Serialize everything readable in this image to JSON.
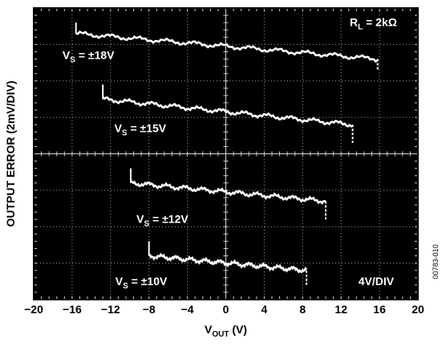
{
  "chart_data": {
    "type": "line",
    "title": "",
    "xlabel": "V",
    "xlabel_sub": "OUT",
    "xlabel_unit": " (V)",
    "ylabel": "OUTPUT ERROR (2mV/DIV)",
    "xlim": [
      -20,
      20
    ],
    "ylim": [
      -8,
      8
    ],
    "x_ticks": [
      "−20",
      "−16",
      "−12",
      "−8",
      "−4",
      "0",
      "4",
      "8",
      "12",
      "16",
      "20"
    ],
    "grid": true,
    "background": "#000000",
    "trace_color": "#ffffff",
    "annotations": {
      "load": {
        "main": "R",
        "sub": "L",
        "rest": " = 2kΩ"
      },
      "scale": "4V/DIV",
      "figure_code": "00783-010"
    },
    "series": [
      {
        "label_main": "V",
        "label_sub": "S",
        "label_rest": " = ±18V",
        "x": [
          -15.6,
          15.8
        ],
        "y": [
          6.6,
          5.2
        ],
        "start_spike": [
          7.2,
          6.6
        ],
        "end_spike": [
          5.2,
          4.6
        ]
      },
      {
        "label_main": "V",
        "label_sub": "S",
        "label_rest": " = ±15V",
        "x": [
          -12.8,
          13.2
        ],
        "y": [
          3.0,
          1.6
        ],
        "start_spike": [
          3.8,
          3.0
        ],
        "end_spike": [
          1.6,
          0.6
        ]
      },
      {
        "label_main": "V",
        "label_sub": "S",
        "label_rest": " = ±12V",
        "x": [
          -9.9,
          10.4
        ],
        "y": [
          -1.6,
          -2.6
        ],
        "start_spike": [
          -0.8,
          -1.6
        ],
        "end_spike": [
          -2.6,
          -3.6
        ]
      },
      {
        "label_main": "V",
        "label_sub": "S",
        "label_rest": " = ±10V",
        "x": [
          -8.0,
          8.4
        ],
        "y": [
          -5.6,
          -6.4
        ],
        "start_spike": [
          -4.8,
          -5.6
        ],
        "end_spike": [
          -6.4,
          -7.2
        ]
      }
    ]
  }
}
